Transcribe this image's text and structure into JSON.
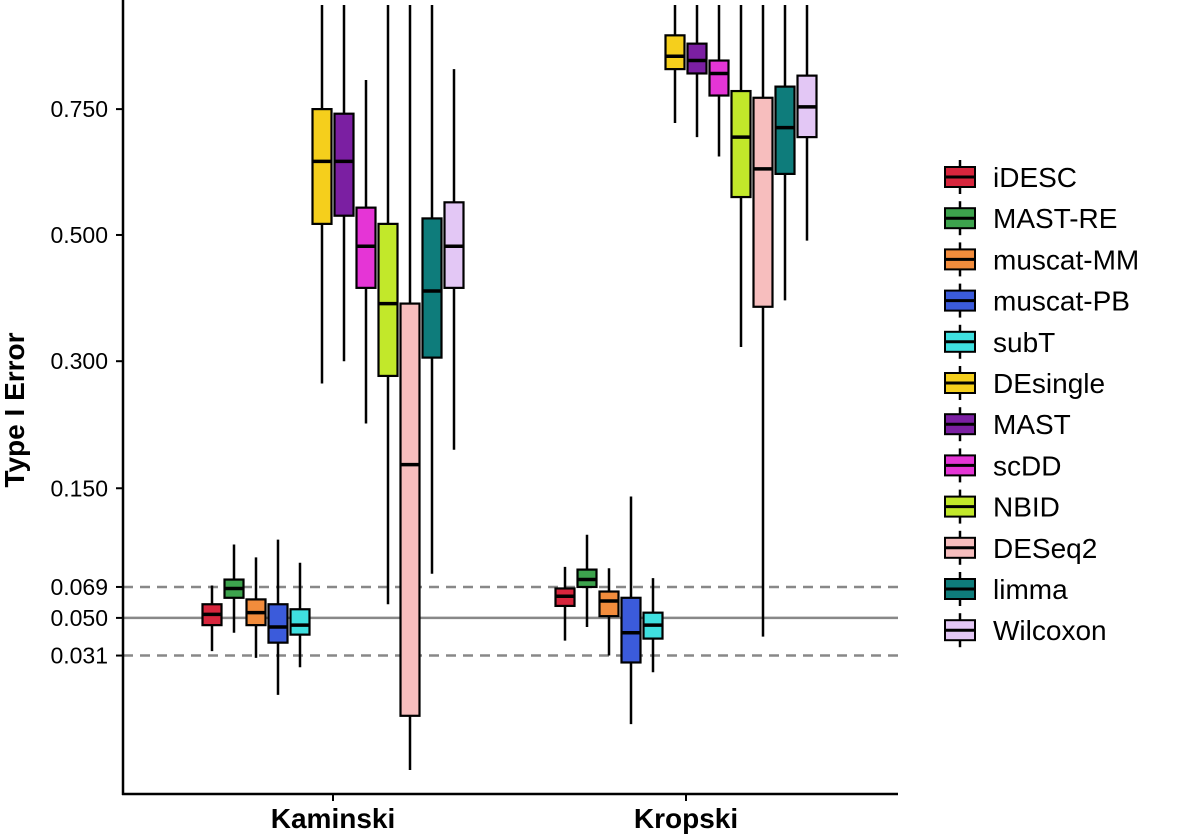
{
  "chart_data": {
    "type": "box",
    "ylabel": "Type I Error",
    "xlabel": "",
    "categories": [
      "Kaminski",
      "Kropski"
    ],
    "y_ticks": [
      {
        "value": 0.031,
        "label": "0.031"
      },
      {
        "value": 0.05,
        "label": "0.050"
      },
      {
        "value": 0.069,
        "label": "0.069"
      },
      {
        "value": 0.15,
        "label": "0.150"
      },
      {
        "value": 0.3,
        "label": "0.300"
      },
      {
        "value": 0.5,
        "label": "0.500"
      },
      {
        "value": 0.75,
        "label": "0.750"
      }
    ],
    "scale": "sqrt",
    "ylim": [
      0,
      1.0
    ],
    "reference_lines": [
      {
        "value": 0.05,
        "style": "solid",
        "color": "#888888"
      },
      {
        "value": 0.069,
        "style": "dashed",
        "color": "#888888"
      },
      {
        "value": 0.031,
        "style": "dashed",
        "color": "#888888"
      }
    ],
    "legend_position": "right",
    "series": [
      {
        "name": "iDESC",
        "color": "#D7263D",
        "boxes": [
          {
            "category": "Kaminski",
            "whisker_low": 0.033,
            "q1": 0.046,
            "median": 0.052,
            "q3": 0.058,
            "whisker_high": 0.07
          },
          {
            "category": "Kropski",
            "whisker_low": 0.038,
            "q1": 0.057,
            "median": 0.063,
            "q3": 0.068,
            "whisker_high": 0.083
          }
        ]
      },
      {
        "name": "MAST-RE",
        "color": "#3DA34D",
        "boxes": [
          {
            "category": "Kaminski",
            "whisker_low": 0.042,
            "q1": 0.062,
            "median": 0.068,
            "q3": 0.074,
            "whisker_high": 0.1
          },
          {
            "category": "Kropski",
            "whisker_low": 0.045,
            "q1": 0.069,
            "median": 0.074,
            "q3": 0.081,
            "whisker_high": 0.108
          }
        ]
      },
      {
        "name": "muscat-MM",
        "color": "#F28C3C",
        "boxes": [
          {
            "category": "Kaminski",
            "whisker_low": 0.03,
            "q1": 0.046,
            "median": 0.053,
            "q3": 0.061,
            "whisker_high": 0.09
          },
          {
            "category": "Kropski",
            "whisker_low": 0.031,
            "q1": 0.051,
            "median": 0.06,
            "q3": 0.066,
            "whisker_high": 0.082
          }
        ]
      },
      {
        "name": "muscat-PB",
        "color": "#3B5BDB",
        "boxes": [
          {
            "category": "Kaminski",
            "whisker_low": 0.016,
            "q1": 0.037,
            "median": 0.045,
            "q3": 0.058,
            "whisker_high": 0.104
          },
          {
            "category": "Kropski",
            "whisker_low": 0.008,
            "q1": 0.028,
            "median": 0.042,
            "q3": 0.062,
            "whisker_high": 0.142
          }
        ]
      },
      {
        "name": "subT",
        "color": "#3FE0E0",
        "boxes": [
          {
            "category": "Kaminski",
            "whisker_low": 0.026,
            "q1": 0.041,
            "median": 0.046,
            "q3": 0.055,
            "whisker_high": 0.086
          },
          {
            "category": "Kropski",
            "whisker_low": 0.024,
            "q1": 0.039,
            "median": 0.046,
            "q3": 0.053,
            "whisker_high": 0.075
          }
        ]
      },
      {
        "name": "DEsingle",
        "color": "#F5CF1C",
        "boxes": [
          {
            "category": "Kaminski",
            "whisker_low": 0.27,
            "q1": 0.52,
            "median": 0.64,
            "q3": 0.75,
            "whisker_high": 0.995
          },
          {
            "category": "Kropski",
            "whisker_low": 0.72,
            "q1": 0.84,
            "median": 0.87,
            "q3": 0.92,
            "whisker_high": 0.995
          }
        ]
      },
      {
        "name": "MAST",
        "color": "#7B1FA2",
        "boxes": [
          {
            "category": "Kaminski",
            "whisker_low": 0.3,
            "q1": 0.535,
            "median": 0.64,
            "q3": 0.74,
            "whisker_high": 0.995
          },
          {
            "category": "Kropski",
            "whisker_low": 0.69,
            "q1": 0.83,
            "median": 0.86,
            "q3": 0.9,
            "whisker_high": 0.995
          }
        ]
      },
      {
        "name": "scDD",
        "color": "#E535D6",
        "boxes": [
          {
            "category": "Kaminski",
            "whisker_low": 0.22,
            "q1": 0.41,
            "median": 0.48,
            "q3": 0.55,
            "whisker_high": 0.815
          },
          {
            "category": "Kropski",
            "whisker_low": 0.65,
            "q1": 0.78,
            "median": 0.83,
            "q3": 0.86,
            "whisker_high": 0.995
          }
        ]
      },
      {
        "name": "NBID",
        "color": "#C2E82A",
        "boxes": [
          {
            "category": "Kaminski",
            "whisker_low": 0.058,
            "q1": 0.28,
            "median": 0.385,
            "q3": 0.52,
            "whisker_high": 0.995
          },
          {
            "category": "Kropski",
            "whisker_low": 0.32,
            "q1": 0.57,
            "median": 0.69,
            "q3": 0.79,
            "whisker_high": 0.995
          }
        ]
      },
      {
        "name": "DESeq2",
        "color": "#F7BEBE",
        "boxes": [
          {
            "category": "Kaminski",
            "whisker_low": 0.001,
            "q1": 0.01,
            "median": 0.174,
            "q3": 0.385,
            "whisker_high": 0.995
          },
          {
            "category": "Kropski",
            "whisker_low": 0.04,
            "q1": 0.38,
            "median": 0.625,
            "q3": 0.775,
            "whisker_high": 0.995
          }
        ]
      },
      {
        "name": "limma",
        "color": "#0E7C7B",
        "boxes": [
          {
            "category": "Kaminski",
            "whisker_low": 0.078,
            "q1": 0.305,
            "median": 0.405,
            "q3": 0.53,
            "whisker_high": 0.995
          },
          {
            "category": "Kropski",
            "whisker_low": 0.39,
            "q1": 0.615,
            "median": 0.71,
            "q3": 0.8,
            "whisker_high": 0.995
          }
        ]
      },
      {
        "name": "Wilcoxon",
        "color": "#E3C7F5",
        "boxes": [
          {
            "category": "Kaminski",
            "whisker_low": 0.19,
            "q1": 0.41,
            "median": 0.48,
            "q3": 0.56,
            "whisker_high": 0.84
          },
          {
            "category": "Kropski",
            "whisker_low": 0.49,
            "q1": 0.69,
            "median": 0.755,
            "q3": 0.825,
            "whisker_high": 0.995
          }
        ]
      }
    ]
  }
}
